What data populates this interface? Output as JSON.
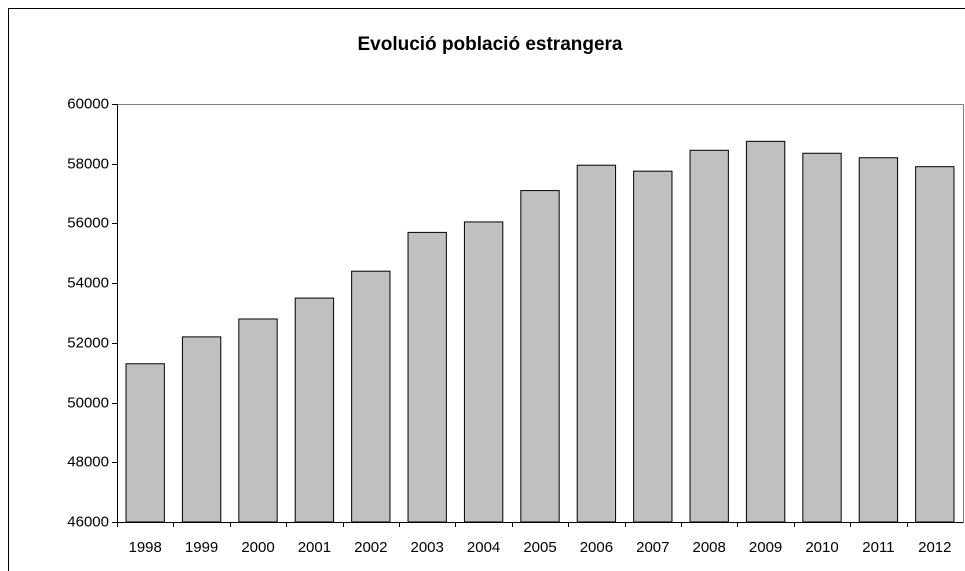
{
  "chart_data": {
    "type": "bar",
    "title": "Evolució població estrangera",
    "categories": [
      "1998",
      "1999",
      "2000",
      "2001",
      "2002",
      "2003",
      "2004",
      "2005",
      "2006",
      "2007",
      "2008",
      "2009",
      "2010",
      "2011",
      "2012"
    ],
    "values": [
      51300,
      52200,
      52800,
      53500,
      54400,
      55700,
      56050,
      57100,
      57950,
      57750,
      58450,
      58750,
      58350,
      58200,
      57900
    ],
    "color": "#c0c0c0",
    "ylim": [
      46000,
      60000
    ],
    "yticks": [
      46000,
      48000,
      50000,
      52000,
      54000,
      56000,
      58000,
      60000
    ],
    "grid": false
  }
}
